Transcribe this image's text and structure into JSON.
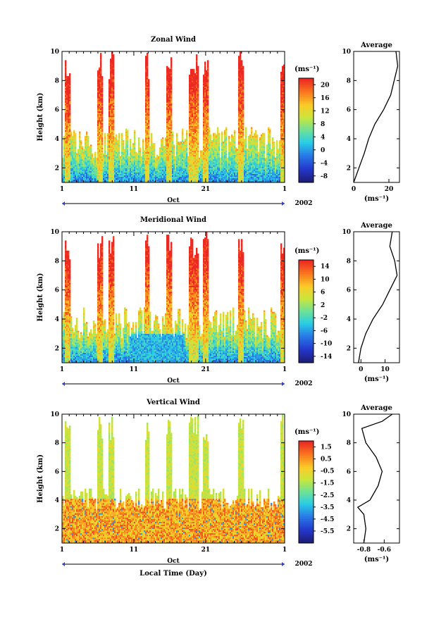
{
  "chart_data": [
    {
      "type": "heatmap",
      "title": "Zonal Wind",
      "ylabel": "Height (km)",
      "ylim": [
        1,
        10
      ],
      "y_ticks": [
        "2",
        "4",
        "6",
        "8",
        "10"
      ],
      "x_ticks": [
        "1",
        "11",
        "21",
        "1"
      ],
      "x_month": "Oct",
      "x_year": "2002",
      "colorbar": {
        "unit": "(ms⁻¹)",
        "ticks": [
          "20",
          "16",
          "12",
          "8",
          "4",
          "0",
          "-4",
          "-8"
        ],
        "range": [
          -10,
          22
        ]
      },
      "average_profile": {
        "title": "Average",
        "xlabel": "(ms⁻¹)",
        "x_ticks": [
          "0",
          "20"
        ],
        "xlim": [
          0,
          26
        ],
        "heights": [
          1,
          2,
          3,
          4,
          5,
          6,
          7,
          8,
          9,
          10
        ],
        "values": [
          0,
          3,
          6,
          8.5,
          12,
          17,
          21,
          23,
          25,
          24
        ]
      }
    },
    {
      "type": "heatmap",
      "title": "Meridional Wind",
      "ylabel": "Height (km)",
      "ylim": [
        1,
        10
      ],
      "y_ticks": [
        "2",
        "4",
        "6",
        "8",
        "10"
      ],
      "x_ticks": [
        "1",
        "11",
        "21",
        "1"
      ],
      "x_month": "Oct",
      "x_year": "2002",
      "colorbar": {
        "unit": "(ms⁻¹)",
        "ticks": [
          "14",
          "10",
          "6",
          "2",
          "-2",
          "-6",
          "-10",
          "-14"
        ],
        "range": [
          -16,
          16
        ]
      },
      "average_profile": {
        "title": "Average",
        "xlabel": "(ms⁻¹)",
        "x_ticks": [
          "0",
          "10"
        ],
        "xlim": [
          -3,
          16
        ],
        "heights": [
          1,
          2,
          3,
          4,
          5,
          6,
          7,
          8,
          9,
          10
        ],
        "values": [
          -1,
          0,
          2,
          5,
          9,
          12,
          15,
          14,
          12,
          13
        ]
      }
    },
    {
      "type": "heatmap",
      "title": "Vertical Wind",
      "ylabel": "Height (km)",
      "xlabel": "Local Time (Day)",
      "ylim": [
        1,
        10
      ],
      "y_ticks": [
        "2",
        "4",
        "6",
        "8",
        "10"
      ],
      "x_ticks": [
        "1",
        "11",
        "21",
        "1"
      ],
      "x_month": "Oct",
      "x_year": "2002",
      "colorbar": {
        "unit": "(ms⁻¹)",
        "ticks": [
          "1.5",
          "0.5",
          "-0.5",
          "-1.5",
          "-2.5",
          "-3.5",
          "-4.5",
          "-5.5"
        ],
        "range": [
          -6.5,
          2
        ]
      },
      "average_profile": {
        "title": "Average",
        "xlabel": "(ms⁻¹)",
        "x_ticks": [
          "-0.8",
          "-0.6"
        ],
        "xlim": [
          -0.9,
          -0.45
        ],
        "heights": [
          1,
          2,
          3,
          3.5,
          4,
          5,
          6,
          7,
          8,
          9,
          9.5,
          10
        ],
        "values": [
          -0.8,
          -0.78,
          -0.8,
          -0.86,
          -0.74,
          -0.66,
          -0.62,
          -0.68,
          -0.78,
          -0.82,
          -0.62,
          -0.52
        ]
      }
    }
  ]
}
